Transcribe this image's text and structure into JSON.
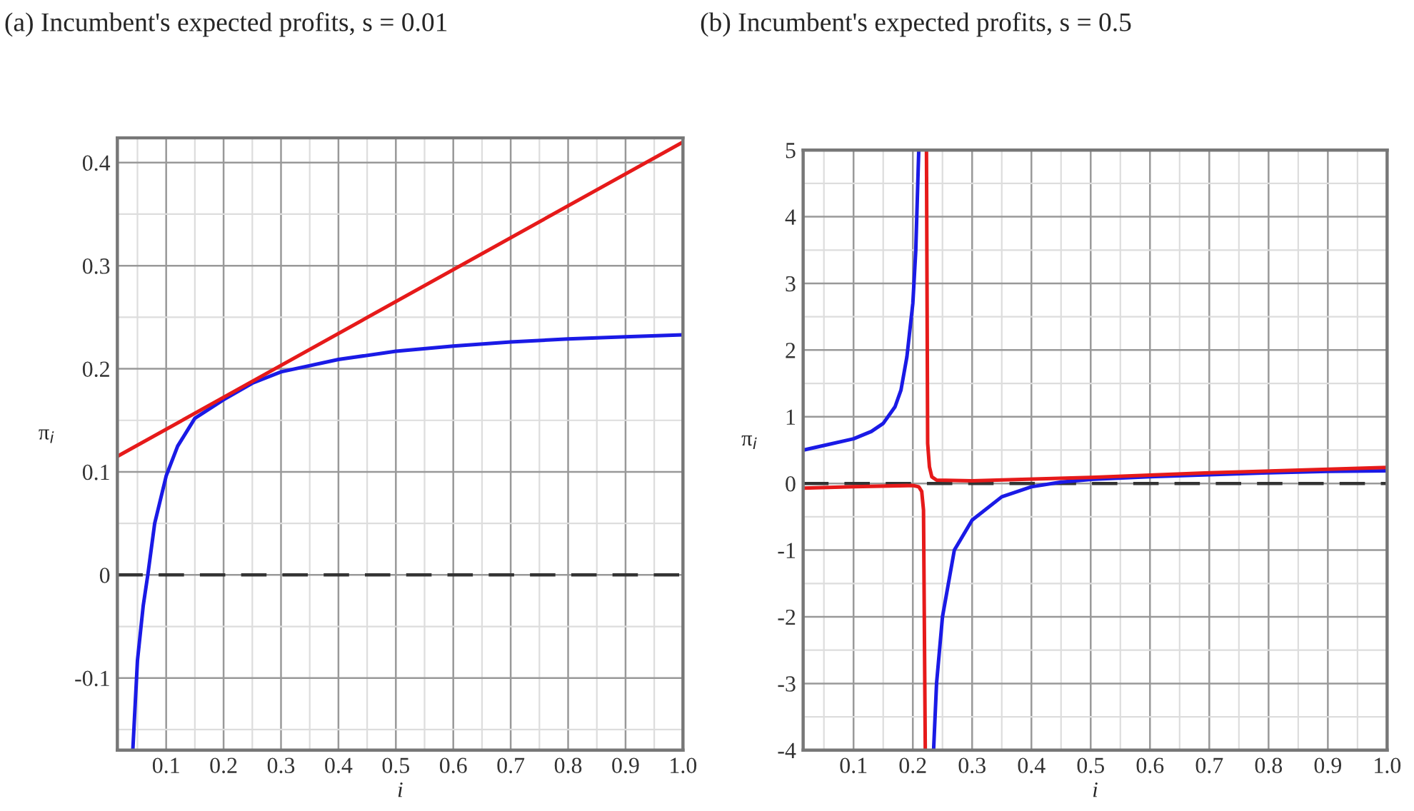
{
  "chart_data": [
    {
      "type": "line",
      "title": "(a) Incumbent's expected profits, s = 0.01",
      "xlabel": "i",
      "ylabel": "π$_{i}$",
      "xlim": [
        0.015,
        1.0
      ],
      "ylim": [
        -0.17,
        0.424
      ],
      "xticks": [
        {
          "value": 0.05,
          "label": null
        },
        0.1,
        {
          "value": 0.15,
          "label": null
        },
        0.2,
        {
          "value": 0.25,
          "label": null
        },
        0.3,
        {
          "value": 0.35,
          "label": null
        },
        0.4,
        {
          "value": 0.45,
          "label": null
        },
        0.5,
        {
          "value": 0.55,
          "label": null
        },
        0.6,
        {
          "value": 0.65,
          "label": null
        },
        0.7,
        {
          "value": 0.75,
          "label": null
        },
        0.8,
        {
          "value": 0.85,
          "label": null
        },
        0.9,
        {
          "value": 0.95,
          "label": null
        },
        {
          "value": 1.0,
          "label": "1.0"
        }
      ],
      "yticks": [
        {
          "value": -0.15,
          "label": null
        },
        -0.1,
        {
          "value": -0.05,
          "label": null
        },
        0,
        {
          "value": 0.05,
          "label": null
        },
        0.1,
        {
          "value": 0.15,
          "label": null
        },
        0.2,
        {
          "value": 0.25,
          "label": null
        },
        0.3,
        {
          "value": 0.35,
          "label": null
        },
        0.4
      ],
      "grid": true,
      "series": [
        {
          "color": "#1a1ae6",
          "x": [
            0.042,
            0.05,
            0.06,
            0.068,
            0.08,
            0.1,
            0.12,
            0.15,
            0.2,
            0.25,
            0.3,
            0.4,
            0.5,
            0.6,
            0.7,
            0.8,
            0.9,
            1.0
          ],
          "values": [
            -0.169,
            -0.083,
            -0.03,
            0.0,
            0.05,
            0.096,
            0.125,
            0.152,
            0.17,
            0.186,
            0.197,
            0.209,
            0.217,
            0.222,
            0.226,
            0.229,
            0.231,
            0.233
          ]
        },
        {
          "color": "#e61a1a",
          "x": [
            0.015,
            1.0
          ],
          "values": [
            0.115,
            0.42
          ]
        }
      ],
      "ref_lines": [
        {
          "axis": "y",
          "value": 0,
          "color": "#333333",
          "line_style": "dashed"
        }
      ]
    },
    {
      "type": "line",
      "title": "(b) Incumbent's expected profits, s = 0.5",
      "xlabel": "i",
      "ylabel": "π$_{i}$",
      "xlim": [
        0.015,
        1.0
      ],
      "ylim": [
        -4,
        5
      ],
      "xticks": [
        {
          "value": 0.05,
          "label": null
        },
        0.1,
        {
          "value": 0.15,
          "label": null
        },
        0.2,
        {
          "value": 0.25,
          "label": null
        },
        0.3,
        {
          "value": 0.35,
          "label": null
        },
        0.4,
        {
          "value": 0.45,
          "label": null
        },
        0.5,
        {
          "value": 0.55,
          "label": null
        },
        0.6,
        {
          "value": 0.65,
          "label": null
        },
        0.7,
        {
          "value": 0.75,
          "label": null
        },
        0.8,
        {
          "value": 0.85,
          "label": null
        },
        0.9,
        {
          "value": 0.95,
          "label": null
        },
        {
          "value": 1.0,
          "label": "1.0"
        }
      ],
      "yticks": [
        -4,
        {
          "value": -3.5,
          "label": null
        },
        -3,
        {
          "value": -2.5,
          "label": null
        },
        -2,
        {
          "value": -1.5,
          "label": null
        },
        -1,
        {
          "value": -0.5,
          "label": null
        },
        0,
        {
          "value": 0.5,
          "label": null
        },
        1,
        {
          "value": 1.5,
          "label": null
        },
        2,
        {
          "value": 2.5,
          "label": null
        },
        3,
        {
          "value": 3.5,
          "label": null
        },
        4,
        {
          "value": 4.5,
          "label": null
        },
        5
      ],
      "grid": true,
      "series": [
        {
          "color": "#1a1ae6",
          "x": [
            0.015,
            0.05,
            0.1,
            0.13,
            0.15,
            0.17,
            0.18,
            0.19,
            0.2,
            0.205,
            0.21,
            0.22,
            0.235,
            0.24,
            0.25,
            0.27,
            0.3,
            0.35,
            0.4,
            0.45,
            0.5,
            0.6,
            0.7,
            0.8,
            0.9,
            1.0
          ],
          "values": [
            0.5,
            0.57,
            0.67,
            0.78,
            0.9,
            1.15,
            1.4,
            1.9,
            2.7,
            3.5,
            5,
            null,
            -4,
            -3,
            -2,
            -1,
            -0.55,
            -0.2,
            -0.05,
            0.02,
            0.06,
            0.1,
            0.13,
            0.16,
            0.18,
            0.19
          ]
        },
        {
          "color": "#e61a1a",
          "x": [
            0.015,
            0.1,
            0.2,
            0.21,
            0.215,
            0.218,
            0.221,
            0.222,
            0.223,
            0.225,
            0.228,
            0.232,
            0.24,
            0.3,
            0.5,
            0.7,
            1.0
          ],
          "values": [
            -0.07,
            -0.05,
            -0.03,
            -0.05,
            -0.12,
            -0.4,
            -4,
            null,
            5,
            0.6,
            0.25,
            0.1,
            0.05,
            0.04,
            0.09,
            0.16,
            0.24
          ]
        }
      ],
      "ref_lines": [
        {
          "axis": "y",
          "value": 0,
          "color": "#333333",
          "line_style": "dashed"
        }
      ]
    }
  ]
}
